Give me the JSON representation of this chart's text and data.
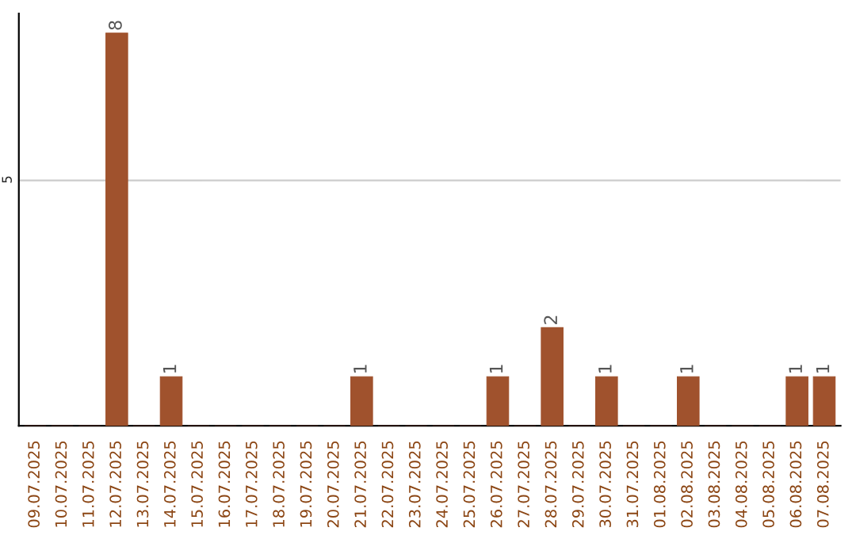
{
  "chart_data": {
    "type": "bar",
    "categories": [
      "09.07.2025",
      "10.07.2025",
      "11.07.2025",
      "12.07.2025",
      "13.07.2025",
      "14.07.2025",
      "15.07.2025",
      "16.07.2025",
      "17.07.2025",
      "18.07.2025",
      "19.07.2025",
      "20.07.2025",
      "21.07.2025",
      "22.07.2025",
      "23.07.2025",
      "24.07.2025",
      "25.07.2025",
      "26.07.2025",
      "27.07.2025",
      "28.07.2025",
      "29.07.2025",
      "30.07.2025",
      "31.07.2025",
      "01.08.2025",
      "02.08.2025",
      "03.08.2025",
      "04.08.2025",
      "05.08.2025",
      "06.08.2025",
      "07.08.2025"
    ],
    "values": [
      0,
      0,
      0,
      8,
      0,
      1,
      0,
      0,
      0,
      0,
      0,
      0,
      1,
      0,
      0,
      0,
      0,
      1,
      0,
      2,
      0,
      1,
      0,
      0,
      1,
      0,
      0,
      0,
      1,
      1
    ],
    "value_labels": [
      null,
      null,
      null,
      "8",
      null,
      "1",
      null,
      null,
      null,
      null,
      null,
      null,
      "1",
      null,
      null,
      null,
      null,
      "1",
      null,
      "2",
      null,
      "1",
      null,
      null,
      "1",
      null,
      null,
      null,
      "1",
      "1"
    ],
    "color": "#a0522d",
    "ylim": [
      0,
      8.4
    ],
    "yticks": [
      5
    ],
    "grid": "y",
    "legend": false
  }
}
